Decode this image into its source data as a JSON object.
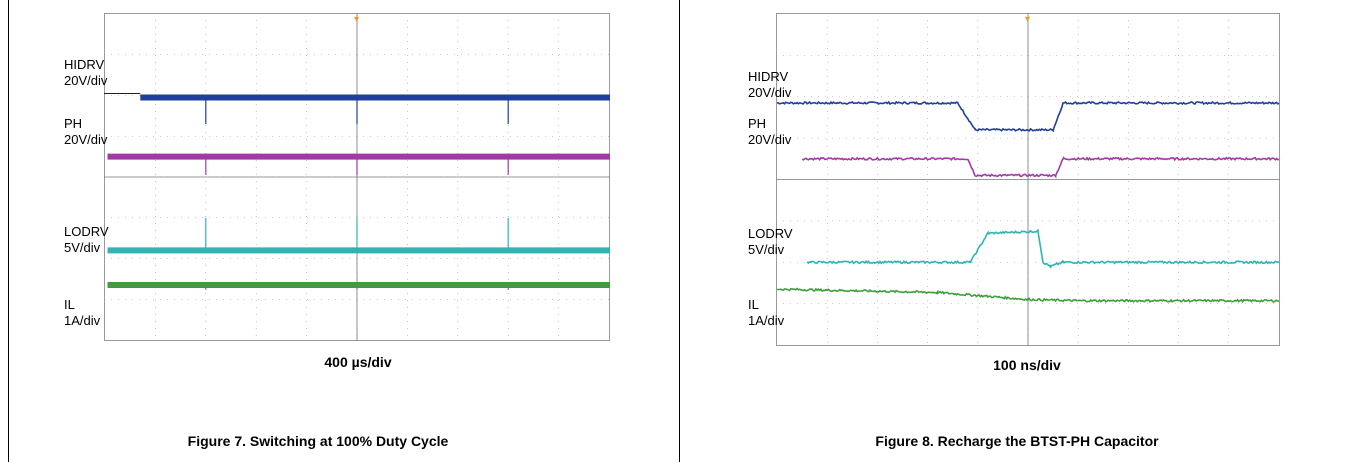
{
  "panels": [
    {
      "timebase": "400 µs/div",
      "caption": "Figure 7. Switching at 100% Duty Cycle",
      "channels": [
        {
          "name": "HIDRV",
          "scale": "20V/div"
        },
        {
          "name": "PH",
          "scale": "20V/div"
        },
        {
          "name": "LODRV",
          "scale": "5V/div"
        },
        {
          "name": "IL",
          "scale": "1A/div"
        }
      ]
    },
    {
      "timebase": "100 ns/div",
      "caption": "Figure 8. Recharge the BTST-PH Capacitor",
      "channels": [
        {
          "name": "HIDRV",
          "scale": "20V/div"
        },
        {
          "name": "PH",
          "scale": "20V/div"
        },
        {
          "name": "LODRV",
          "scale": "5V/div"
        },
        {
          "name": "IL",
          "scale": "1A/div"
        }
      ]
    }
  ],
  "colors": {
    "hidrv": "#1f3f9a",
    "ph": "#a23aa6",
    "lodrv": "#2fb3b3",
    "il": "#3f9e3a",
    "grid": "#9a9a9a",
    "trigger": "#e0a020"
  },
  "chart_data": [
    {
      "type": "line",
      "title": "Figure 7. Switching at 100% Duty Cycle",
      "xlabel": "400 µs/div",
      "x_divisions": 10,
      "y_divisions": 8,
      "grid": true,
      "series": [
        {
          "name": "HIDRV",
          "scale": "20V/div",
          "level_div": 5.95,
          "pulses_div": [
            2,
            5,
            8
          ],
          "pulse_drop_div": 0.65,
          "pulse_dir": "down"
        },
        {
          "name": "PH",
          "scale": "20V/div",
          "level_div": 4.5,
          "pulses_div": [
            2,
            5,
            8
          ],
          "pulse_drop_div": 0.45,
          "pulse_dir": "down"
        },
        {
          "name": "LODRV",
          "scale": "5V/div",
          "level_div": 2.2,
          "pulses_div": [
            2,
            5,
            8
          ],
          "pulse_drop_div": 0.8,
          "pulse_dir": "up"
        },
        {
          "name": "IL",
          "scale": "1A/div",
          "level_div": 1.35,
          "pulses_div": [
            2,
            5,
            8
          ],
          "pulse_drop_div": 0.12,
          "pulse_dir": "down"
        }
      ]
    },
    {
      "type": "line",
      "title": "Figure 8. Recharge the BTST-PH Capacitor",
      "xlabel": "100 ns/div",
      "x_divisions": 10,
      "y_divisions": 8,
      "grid": true,
      "series": [
        {
          "name": "HIDRV",
          "scale": "20V/div",
          "points_div": [
            [
              0,
              5.85
            ],
            [
              3.6,
              5.85
            ],
            [
              3.95,
              5.2
            ],
            [
              5.5,
              5.2
            ],
            [
              5.7,
              5.85
            ],
            [
              10,
              5.85
            ]
          ]
        },
        {
          "name": "PH",
          "scale": "20V/div",
          "points_div": [
            [
              0.5,
              4.5
            ],
            [
              3.8,
              4.5
            ],
            [
              3.95,
              4.1
            ],
            [
              5.55,
              4.1
            ],
            [
              5.7,
              4.5
            ],
            [
              10,
              4.5
            ]
          ]
        },
        {
          "name": "LODRV",
          "scale": "5V/div",
          "points_div": [
            [
              0.6,
              2.0
            ],
            [
              3.85,
              2.0
            ],
            [
              4.2,
              2.7
            ],
            [
              5.2,
              2.75
            ],
            [
              5.3,
              2.0
            ],
            [
              5.45,
              1.9
            ],
            [
              5.7,
              2.0
            ],
            [
              10,
              2.0
            ]
          ]
        },
        {
          "name": "IL",
          "scale": "1A/div",
          "points_div": [
            [
              0,
              1.35
            ],
            [
              3.2,
              1.27
            ],
            [
              5.0,
              1.1
            ],
            [
              6.0,
              1.07
            ],
            [
              10,
              1.07
            ]
          ]
        }
      ]
    }
  ]
}
